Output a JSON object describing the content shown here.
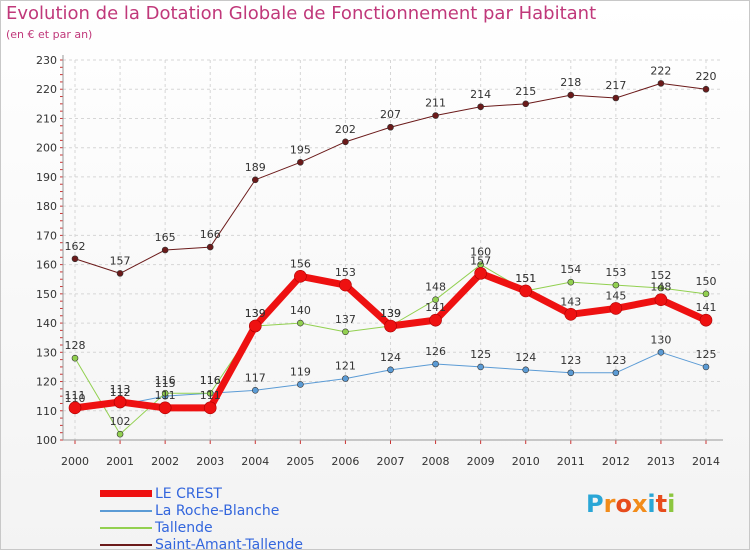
{
  "title": "Evolution de la Dotation Globale de Fonctionnement par Habitant",
  "subtitle": "(en € et par an)",
  "logo": {
    "letters": [
      "P",
      "r",
      "o",
      "x",
      "i",
      "t",
      "i"
    ],
    "colors": [
      "#2aa6d6",
      "#f28c1a",
      "#e74c1c",
      "#f28c1a",
      "#2aa6d6",
      "#e74c1c",
      "#8cc63f"
    ]
  },
  "chart_data": {
    "type": "line",
    "title": "Evolution de la Dotation Globale de Fonctionnement par Habitant",
    "subtitle": "(en € et par an)",
    "x": [
      2000,
      2001,
      2002,
      2003,
      2004,
      2005,
      2006,
      2007,
      2008,
      2009,
      2010,
      2011,
      2012,
      2013,
      2014
    ],
    "ylim": [
      100,
      230
    ],
    "yticks": [
      100,
      110,
      120,
      130,
      140,
      150,
      160,
      170,
      180,
      190,
      200,
      210,
      220,
      230
    ],
    "grid": true,
    "legend_position": "bottom-left",
    "series": [
      {
        "name": "Saint-Amant-Tallende",
        "color": "#6b1a1a",
        "width": 1,
        "values": [
          162,
          157,
          165,
          166,
          189,
          195,
          202,
          207,
          211,
          214,
          215,
          218,
          217,
          222,
          220
        ]
      },
      {
        "name": "La Roche-Blanche",
        "color": "#5b9bd5",
        "width": 1,
        "values": [
          110,
          112,
          115,
          116,
          117,
          119,
          121,
          124,
          126,
          125,
          124,
          123,
          123,
          130,
          125
        ]
      },
      {
        "name": "Tallende",
        "color": "#92d050",
        "width": 1,
        "values": [
          128,
          102,
          116,
          116,
          139,
          140,
          137,
          139,
          148,
          160,
          151,
          154,
          153,
          152,
          150
        ]
      },
      {
        "name": "LE CREST",
        "color": "#ee1111",
        "width": 7,
        "values": [
          111,
          113,
          111,
          111,
          139,
          156,
          153,
          139,
          141,
          157,
          151,
          143,
          145,
          148,
          141
        ]
      }
    ],
    "legend_order": [
      "LE CREST",
      "La Roche-Blanche",
      "Tallende",
      "Saint-Amant-Tallende"
    ]
  }
}
